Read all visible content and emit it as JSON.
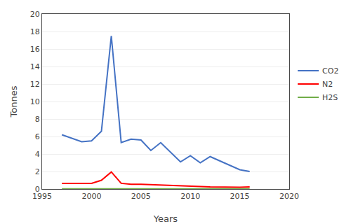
{
  "chart_data": {
    "type": "line",
    "x": [
      1997,
      1999,
      2000,
      2001,
      2002,
      2003,
      2004,
      2005,
      2006,
      2007,
      2009,
      2010,
      2011,
      2012,
      2015,
      2016
    ],
    "series": [
      {
        "name": "CO2",
        "color": "#4472C4",
        "values": [
          6.2,
          5.4,
          5.5,
          6.6,
          17.5,
          5.3,
          5.7,
          5.6,
          4.4,
          5.3,
          3.1,
          3.8,
          3.0,
          3.7,
          2.2,
          2.0
        ]
      },
      {
        "name": "N2",
        "color": "#FF0000",
        "values": [
          0.65,
          0.65,
          0.65,
          1.0,
          1.95,
          0.65,
          0.55,
          0.55,
          0.5,
          0.45,
          0.35,
          0.3,
          0.28,
          0.25,
          0.2,
          0.25
        ]
      },
      {
        "name": "H2S",
        "color": "#70AD47",
        "values": [
          0.02,
          0.02,
          0.02,
          0.02,
          0.03,
          0.02,
          0.02,
          0.02,
          0.02,
          0.02,
          0.02,
          0.02,
          0.02,
          0.02,
          0.02,
          0.02
        ]
      }
    ],
    "xlabel": "Years",
    "ylabel": "Tonnes",
    "xlim": [
      1995,
      2020
    ],
    "xticks": [
      1995,
      2000,
      2005,
      2010,
      2015,
      2020
    ],
    "ylim": [
      0,
      20
    ],
    "yticks": [
      0,
      2,
      4,
      6,
      8,
      10,
      12,
      14,
      16,
      18,
      20
    ],
    "grid": "y",
    "legend": "right"
  }
}
